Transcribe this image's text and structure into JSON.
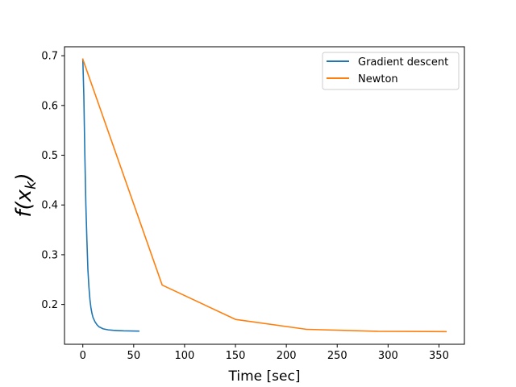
{
  "chart_data": {
    "type": "line",
    "title": "",
    "xlabel": "Time [sec]",
    "ylabel": "f(x_k)",
    "ylabel_display": {
      "base": "f(x",
      "sub": "k",
      "close": ")"
    },
    "xlim": [
      -18,
      375
    ],
    "ylim": [
      0.12,
      0.718
    ],
    "xticks": [
      0,
      50,
      100,
      150,
      200,
      250,
      300,
      350
    ],
    "xtick_labels": [
      "0",
      "50",
      "100",
      "150",
      "200",
      "250",
      "300",
      "350"
    ],
    "yticks": [
      0.2,
      0.3,
      0.4,
      0.5,
      0.6,
      0.7
    ],
    "ytick_labels": [
      "0.2",
      "0.3",
      "0.4",
      "0.5",
      "0.6",
      "0.7"
    ],
    "grid": false,
    "legend_position": "top-right",
    "series": [
      {
        "name": "Gradient descent",
        "color": "#1f77b4",
        "x": [
          0,
          1,
          2,
          3,
          4,
          5,
          6,
          7,
          8,
          9,
          10,
          12,
          14,
          16,
          18,
          20,
          25,
          30,
          35,
          40,
          45,
          50,
          55
        ],
        "y": [
          0.693,
          0.62,
          0.5,
          0.4,
          0.33,
          0.27,
          0.235,
          0.21,
          0.193,
          0.182,
          0.174,
          0.165,
          0.159,
          0.155,
          0.153,
          0.151,
          0.149,
          0.148,
          0.1475,
          0.147,
          0.1468,
          0.1466,
          0.1465
        ]
      },
      {
        "name": "Newton",
        "color": "#ff7f0e",
        "x": [
          0,
          78,
          150,
          220,
          290,
          357
        ],
        "y": [
          0.693,
          0.239,
          0.17,
          0.15,
          0.146,
          0.1455
        ]
      }
    ]
  }
}
